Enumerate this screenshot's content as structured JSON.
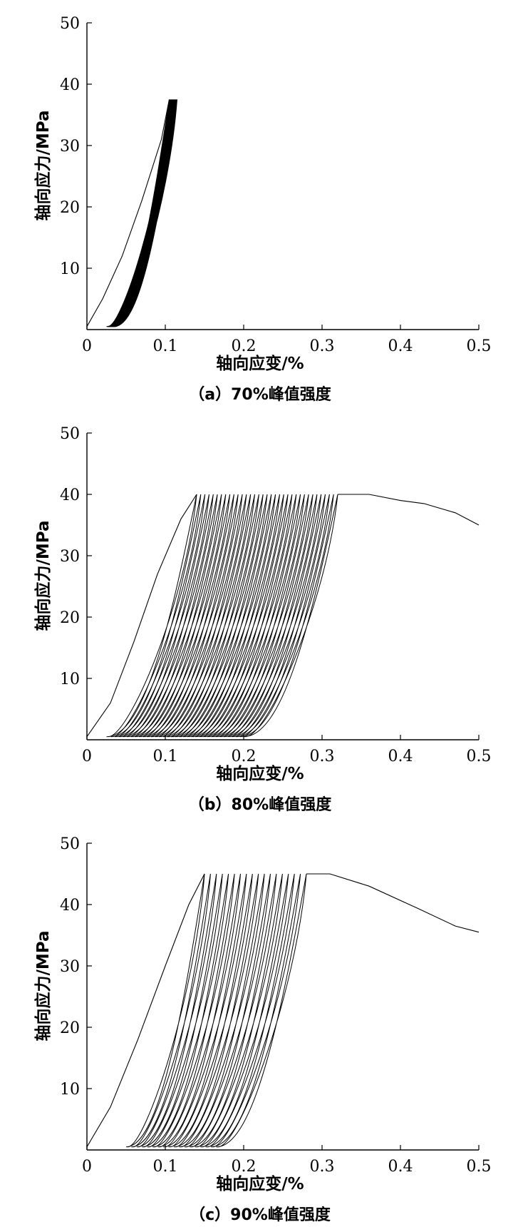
{
  "chart_data": [
    {
      "type": "line",
      "panel_caption": "（a）70%峰值强度",
      "xlabel": "轴向应变/%",
      "ylabel": "轴向应力/MPa",
      "xlim": [
        0,
        0.5
      ],
      "ylim": [
        0,
        50
      ],
      "xticks": [
        "0",
        "0.1",
        "0.2",
        "0.3",
        "0.4",
        "0.5"
      ],
      "yticks": [
        "10",
        "20",
        "30",
        "40",
        "50"
      ],
      "grid": false,
      "legend": "none",
      "cyclic_loading": {
        "upper_stress": 37.5,
        "lower_stress": 0.5,
        "initial_loading_curve": [
          [
            0.0,
            0.5
          ],
          [
            0.02,
            5
          ],
          [
            0.045,
            12
          ],
          [
            0.07,
            21
          ],
          [
            0.095,
            31
          ],
          [
            0.105,
            37.5
          ]
        ],
        "cycle_count": 20,
        "first_cycle_residual_strain": 0.025,
        "last_cycle_residual_strain": 0.035,
        "first_cycle_peak_strain": 0.105,
        "last_cycle_peak_strain": 0.115,
        "failure_branch": []
      }
    },
    {
      "type": "line",
      "panel_caption": "（b）80%峰值强度",
      "xlabel": "轴向应变/%",
      "ylabel": "轴向应力/MPa",
      "xlim": [
        0,
        0.5
      ],
      "ylim": [
        0,
        50
      ],
      "xticks": [
        "0",
        "0.1",
        "0.2",
        "0.3",
        "0.4",
        "0.5"
      ],
      "yticks": [
        "10",
        "20",
        "30",
        "40",
        "50"
      ],
      "grid": false,
      "legend": "none",
      "cyclic_loading": {
        "upper_stress": 40,
        "lower_stress": 0.5,
        "initial_loading_curve": [
          [
            0.0,
            0.5
          ],
          [
            0.03,
            6
          ],
          [
            0.06,
            16
          ],
          [
            0.09,
            27
          ],
          [
            0.12,
            36
          ],
          [
            0.14,
            40
          ]
        ],
        "cycle_count": 35,
        "first_cycle_residual_strain": 0.025,
        "last_cycle_residual_strain": 0.2,
        "first_cycle_peak_strain": 0.14,
        "last_cycle_peak_strain": 0.32,
        "failure_branch": [
          [
            0.32,
            40
          ],
          [
            0.36,
            40
          ],
          [
            0.4,
            39
          ],
          [
            0.43,
            38.5
          ],
          [
            0.47,
            37
          ],
          [
            0.5,
            35
          ]
        ]
      }
    },
    {
      "type": "line",
      "panel_caption": "（c）90%峰值强度",
      "xlabel": "轴向应变/%",
      "ylabel": "轴向应力/MPa",
      "xlim": [
        0,
        0.5
      ],
      "ylim": [
        0,
        50
      ],
      "xticks": [
        "0",
        "0.1",
        "0.2",
        "0.3",
        "0.4",
        "0.5"
      ],
      "yticks": [
        "10",
        "20",
        "30",
        "40",
        "50"
      ],
      "grid": false,
      "legend": "none",
      "cyclic_loading": {
        "upper_stress": 45,
        "lower_stress": 0.5,
        "initial_loading_curve": [
          [
            0.0,
            0.5
          ],
          [
            0.03,
            7
          ],
          [
            0.065,
            18
          ],
          [
            0.1,
            30
          ],
          [
            0.13,
            40
          ],
          [
            0.15,
            45
          ]
        ],
        "cycle_count": 18,
        "first_cycle_residual_strain": 0.05,
        "last_cycle_residual_strain": 0.165,
        "first_cycle_peak_strain": 0.15,
        "last_cycle_peak_strain": 0.28,
        "failure_branch": [
          [
            0.28,
            45
          ],
          [
            0.31,
            45
          ],
          [
            0.36,
            43
          ],
          [
            0.42,
            39.5
          ],
          [
            0.47,
            36.5
          ],
          [
            0.5,
            35.5
          ]
        ]
      }
    }
  ]
}
